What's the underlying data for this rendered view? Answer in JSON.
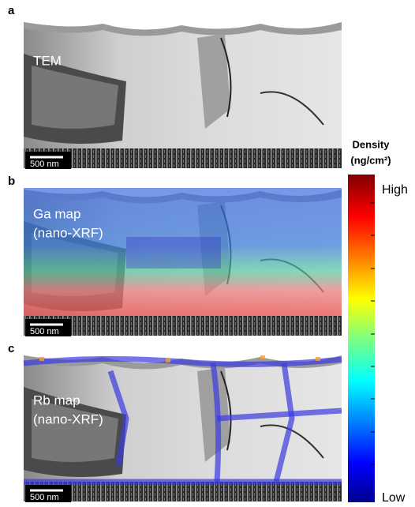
{
  "panels": [
    {
      "letter": "a",
      "labels": [
        "TEM"
      ],
      "scale_bar": "500 nm"
    },
    {
      "letter": "b",
      "labels": [
        "Ga map",
        "(nano-XRF)"
      ],
      "scale_bar": "500 nm"
    },
    {
      "letter": "c",
      "labels": [
        "Rb map",
        "(nano-XRF)"
      ],
      "scale_bar": "500 nm"
    }
  ],
  "colorbar": {
    "title": "Density",
    "unit": "(ng/cm²)",
    "high": "High",
    "low": "Low"
  }
}
